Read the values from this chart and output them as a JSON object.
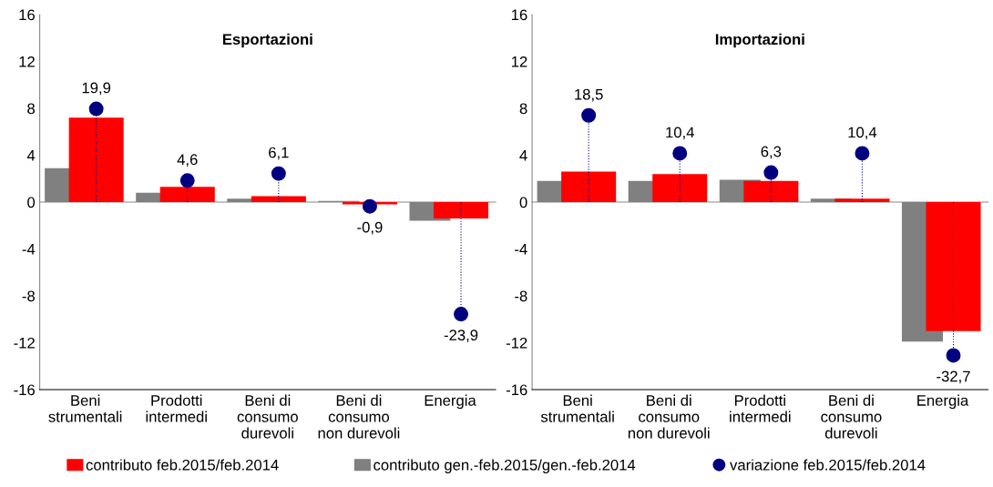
{
  "chart_data": [
    {
      "type": "bar",
      "title": "Esportazioni",
      "categories": [
        "Beni\nstrumentali",
        "Prodotti\nintermedi",
        "Beni di\nconsumo\ndurevoli",
        "Beni di\nconsumo\nnon durevoli",
        "Energia"
      ],
      "series": [
        {
          "name": "contributo gen.-feb.2015/gen.-feb.2014",
          "color": "#808080",
          "values": [
            2.9,
            0.8,
            0.3,
            0.1,
            -1.6
          ]
        },
        {
          "name": "contributo feb.2015/feb.2014",
          "color": "#ff0000",
          "values": [
            7.2,
            1.3,
            0.5,
            -0.2,
            -1.4
          ]
        },
        {
          "name": "variazione feb.2015/feb.2014",
          "type": "lollipop",
          "axis": "y2",
          "color": "#000080",
          "values": [
            19.9,
            4.6,
            6.1,
            -0.9,
            -23.9
          ],
          "value_labels": [
            "19,9",
            "4,6",
            "6,1",
            "-0,9",
            "-23,9"
          ]
        }
      ],
      "ylim": [
        -16,
        16
      ],
      "yticks": [
        -16,
        -12,
        -8,
        -4,
        0,
        4,
        8,
        12,
        16
      ],
      "y2lim": [
        -40,
        40
      ],
      "legend": "bottom",
      "marker": "circle",
      "line_style": "dotted"
    },
    {
      "type": "bar",
      "title": "Importazioni",
      "categories": [
        "Beni\nstrumentali",
        "Beni di\nconsumo\nnon durevoli",
        "Prodotti\nintermedi",
        "Beni di\nconsumo\ndurevoli",
        "Energia"
      ],
      "series": [
        {
          "name": "contributo gen.-feb.2015/gen.-feb.2014",
          "color": "#808080",
          "values": [
            1.8,
            1.8,
            1.9,
            0.3,
            -11.9
          ]
        },
        {
          "name": "contributo feb.2015/feb.2014",
          "color": "#ff0000",
          "values": [
            2.6,
            2.4,
            1.8,
            0.3,
            -11.0
          ]
        },
        {
          "name": "variazione feb.2015/feb.2014",
          "type": "lollipop",
          "axis": "y2",
          "color": "#000080",
          "values": [
            18.5,
            10.4,
            6.3,
            10.4,
            -32.7
          ],
          "value_labels": [
            "18,5",
            "10,4",
            "6,3",
            "10,4",
            "-32,7"
          ]
        }
      ],
      "ylim": [
        -16,
        16
      ],
      "yticks": [
        -16,
        -12,
        -8,
        -4,
        0,
        4,
        8,
        12,
        16
      ],
      "y2lim": [
        -40,
        40
      ],
      "legend": "bottom",
      "marker": "circle",
      "line_style": "dotted"
    }
  ]
}
